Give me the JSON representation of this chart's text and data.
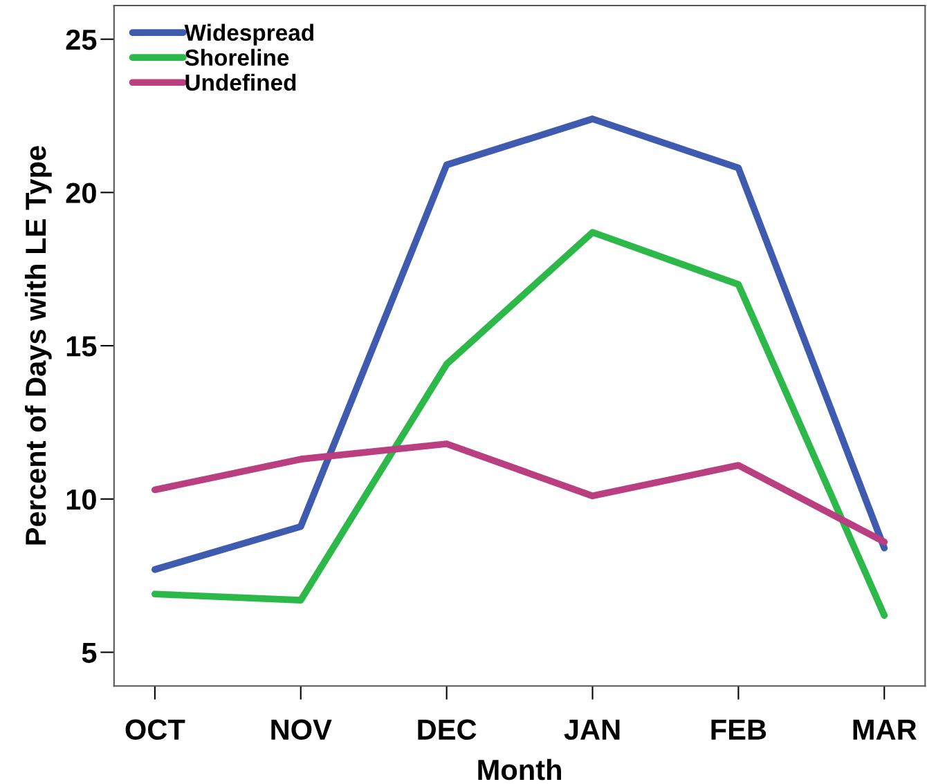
{
  "chart_data": {
    "type": "line",
    "xlabel": "Month",
    "ylabel": "Percent of Days with LE Type",
    "categories": [
      "OCT",
      "NOV",
      "DEC",
      "JAN",
      "FEB",
      "MAR"
    ],
    "series": [
      {
        "name": "Widespread",
        "color": "#3f5bb0",
        "values": [
          7.7,
          9.1,
          20.9,
          22.4,
          20.8,
          8.4
        ]
      },
      {
        "name": "Shoreline",
        "color": "#2db84a",
        "values": [
          6.9,
          6.7,
          14.4,
          18.7,
          17.0,
          6.2
        ]
      },
      {
        "name": "Undefined",
        "color": "#b93f80",
        "values": [
          10.3,
          11.3,
          11.8,
          10.1,
          11.1,
          8.6
        ]
      }
    ],
    "ylim": [
      3.9,
      26.1
    ],
    "yticks": [
      5,
      10,
      15,
      20,
      25
    ],
    "grid": false,
    "legend": "top left",
    "marker": "none",
    "line_style": "solid"
  }
}
